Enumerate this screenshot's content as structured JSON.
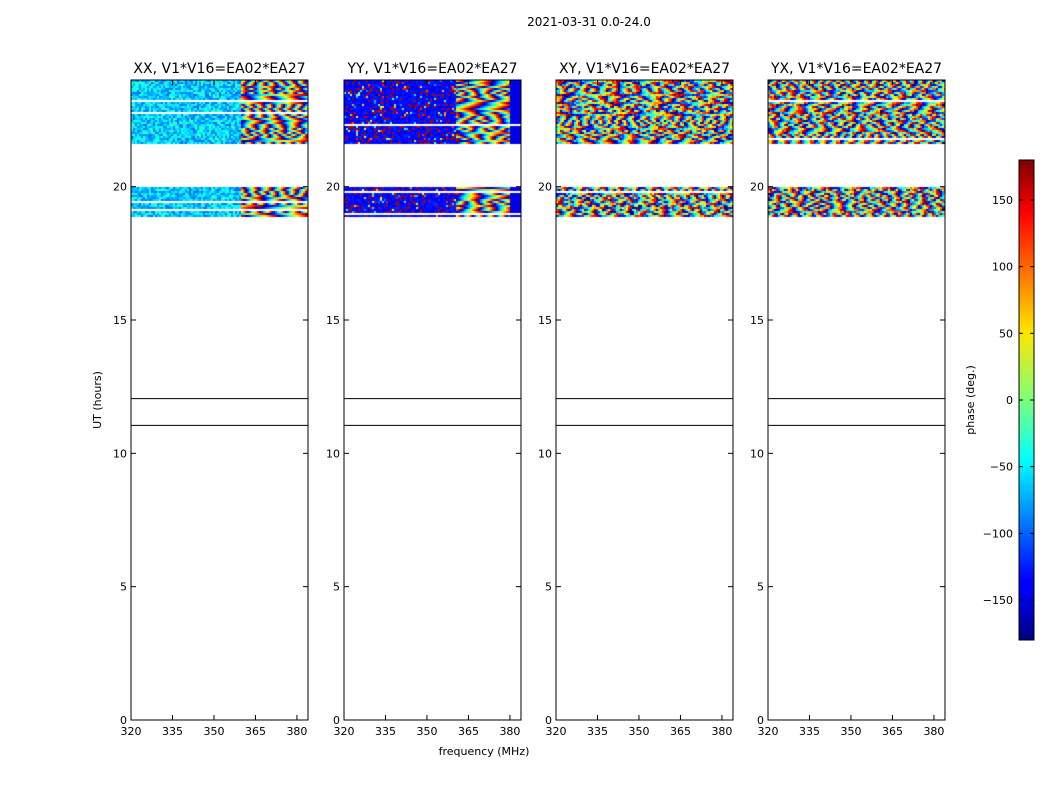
{
  "chart_data": {
    "type": "heatmap",
    "suptitle": "2021-03-31 0.0-24.0",
    "xlabel": "frequency (MHz)",
    "ylabel": "UT (hours)",
    "xlim": [
      320,
      384
    ],
    "ylim": [
      0,
      24
    ],
    "xticks": [
      320,
      335,
      350,
      365,
      380
    ],
    "yticks": [
      0,
      5,
      10,
      15,
      20
    ],
    "data_bands_hours": [
      [
        18.85,
        20.0
      ],
      [
        21.65,
        24.0
      ]
    ],
    "marker_lines_hours": [
      11.05,
      12.05
    ],
    "panels": [
      {
        "title": "XX, V1*V16=EA02*EA27",
        "pol": "XX",
        "palette": "cyan"
      },
      {
        "title": "YY, V1*V16=EA02*EA27",
        "pol": "YY",
        "palette": "blue"
      },
      {
        "title": "XY, V1*V16=EA02*EA27",
        "pol": "XY",
        "palette": "rainbow"
      },
      {
        "title": "YX, V1*V16=EA02*EA27",
        "pol": "YX",
        "palette": "rainbow"
      }
    ],
    "colorbar": {
      "label": "phase (deg.)",
      "range": [
        -180,
        180
      ],
      "ticks": [
        -150,
        -100,
        -50,
        0,
        50,
        100,
        150
      ],
      "tick_labels": [
        "−150",
        "−100",
        "−50",
        "0",
        "50",
        "100",
        "150"
      ],
      "colormap": "jet"
    }
  }
}
